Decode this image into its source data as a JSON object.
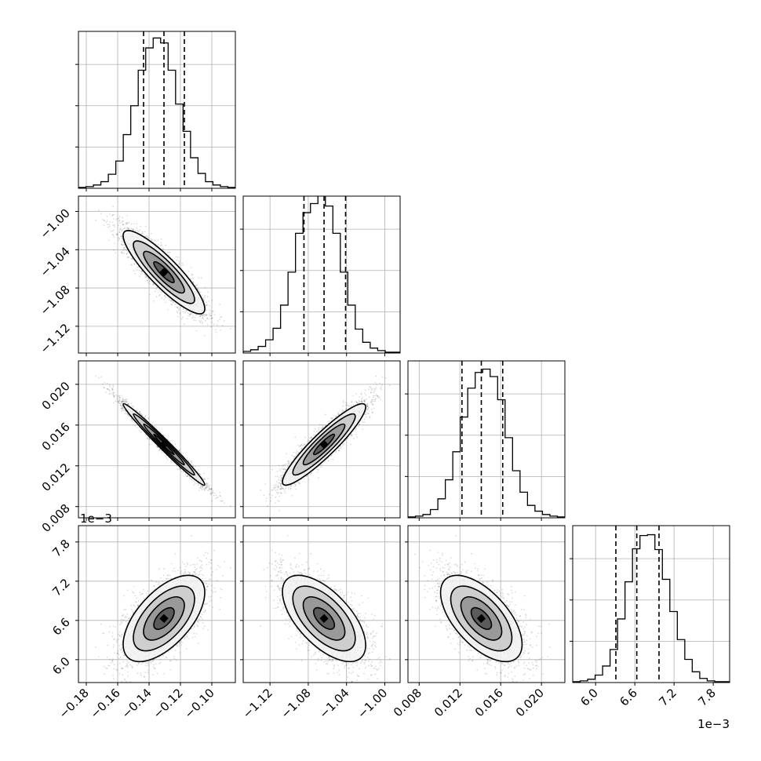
{
  "chart_data": {
    "type": "corner",
    "parameters": [
      {
        "range": [
          -0.185,
          -0.085
        ],
        "ticks": [
          -0.18,
          -0.16,
          -0.14,
          -0.12,
          -0.1
        ],
        "tick_labels": [
          "−0.18",
          "−0.16",
          "−0.14",
          "−0.12",
          "−0.10"
        ],
        "quantiles": [
          -0.1435,
          -0.1305,
          -0.1175
        ],
        "offset_text": ""
      },
      {
        "range": [
          -1.148,
          -0.984
        ],
        "ticks": [
          -1.12,
          -1.08,
          -1.04,
          -1.0
        ],
        "tick_labels": [
          "−1.12",
          "−1.08",
          "−1.04",
          "−1.00"
        ],
        "quantiles": [
          -1.0845,
          -1.0635,
          -1.041
        ],
        "offset_text": ""
      },
      {
        "range": [
          0.0069,
          0.0223
        ],
        "ticks": [
          0.008,
          0.012,
          0.016,
          0.02
        ],
        "tick_labels": [
          "0.008",
          "0.012",
          "0.016",
          "0.020"
        ],
        "quantiles": [
          0.0122,
          0.0141,
          0.0162
        ],
        "offset_text": ""
      },
      {
        "range": [
          5.65,
          8.05
        ],
        "ticks": [
          6.0,
          6.6,
          7.2,
          7.8
        ],
        "tick_labels": [
          "6.0",
          "6.6",
          "7.2",
          "7.8"
        ],
        "quantiles": [
          6.31,
          6.63,
          6.97
        ],
        "offset_text": "1e−3"
      }
    ],
    "histograms": [
      [
        1,
        2,
        4,
        8,
        17,
        33,
        65,
        100,
        143,
        170,
        182,
        176,
        143,
        102,
        69,
        37,
        18,
        8,
        4,
        2,
        1
      ],
      [
        2,
        4,
        8,
        16,
        30,
        58,
        98,
        145,
        170,
        181,
        193,
        178,
        145,
        98,
        58,
        29,
        13,
        6,
        3,
        1,
        1
      ],
      [
        1,
        2,
        4,
        10,
        23,
        46,
        80,
        122,
        157,
        176,
        180,
        171,
        143,
        97,
        57,
        31,
        15,
        8,
        4,
        2,
        1
      ],
      [
        1,
        2,
        4,
        9,
        20,
        40,
        77,
        122,
        162,
        178,
        179,
        161,
        125,
        86,
        52,
        28,
        13,
        5,
        2,
        1,
        1
      ]
    ],
    "hist_ymax": 190,
    "correlations": [
      [
        1,
        -0.88,
        -0.985,
        0.6
      ],
      [
        -0.88,
        1,
        0.92,
        -0.62
      ],
      [
        -0.985,
        0.92,
        1,
        -0.6
      ],
      [
        0.6,
        -0.62,
        -0.6,
        1
      ]
    ],
    "contour_levels_sigma": [
      0.5,
      1,
      1.5,
      2
    ],
    "n_samples": 3000,
    "grid": true,
    "quantile_line_style": "dashed"
  }
}
